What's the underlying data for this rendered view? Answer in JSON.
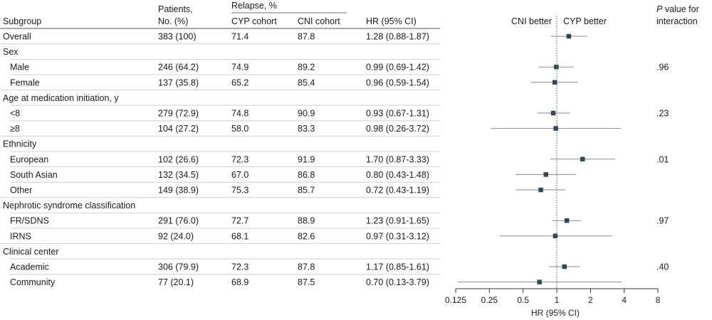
{
  "header": {
    "subgroup": "Subgroup",
    "patients_line1": "Patients,",
    "patients_line2": "No. (%)",
    "relapse": "Relapse, %",
    "cyp": "CYP cohort",
    "cni": "CNI cohort",
    "hr": "HR (95% CI)",
    "cni_better": "CNI better",
    "cyp_better": "CYP better",
    "pvalue_p": "P",
    "pvalue_rest": " value for",
    "pvalue_line2": "interaction"
  },
  "chart_data": {
    "type": "forest",
    "xlabel": "HR (95% CI)",
    "xscale": "log2",
    "xlim": [
      0.125,
      8
    ],
    "xticks": [
      "0.125",
      "0.25",
      "0.5",
      "1",
      "2",
      "4",
      "8"
    ],
    "reference_line": 1,
    "marker_color": "#2e4a5a",
    "rows": [
      {
        "type": "data",
        "label": "Overall",
        "patients": "383 (100)",
        "cyp": "71.4",
        "cni": "87.8",
        "hr_text": "1.28 (0.88-1.87)",
        "hr": 1.28,
        "lo": 0.88,
        "hi": 1.87
      },
      {
        "type": "group",
        "label": "Sex"
      },
      {
        "type": "data",
        "label": "Male",
        "patients": "246 (64.2)",
        "cyp": "74.9",
        "cni": "89.2",
        "hr_text": "0.99 (0.69-1.42)",
        "hr": 0.99,
        "lo": 0.69,
        "hi": 1.42
      },
      {
        "type": "data",
        "label": "Female",
        "patients": "137 (35.8)",
        "cyp": "65.2",
        "cni": "85.4",
        "hr_text": "0.96 (0.59-1.54)",
        "hr": 0.96,
        "lo": 0.59,
        "hi": 1.54
      },
      {
        "type": "group",
        "label": "Age at medication initiation, y"
      },
      {
        "type": "data",
        "label": "<8",
        "patients": "279 (72.9)",
        "cyp": "74.8",
        "cni": "90.9",
        "hr_text": "0.93 (0.67-1.31)",
        "hr": 0.93,
        "lo": 0.67,
        "hi": 1.31
      },
      {
        "type": "data",
        "label": "≥8",
        "patients": "104 (27.2)",
        "cyp": "58.0",
        "cni": "83.3",
        "hr_text": "0.98 (0.26-3.72)",
        "hr": 0.98,
        "lo": 0.26,
        "hi": 3.72
      },
      {
        "type": "group",
        "label": "Ethnicity"
      },
      {
        "type": "data",
        "label": "European",
        "patients": "102 (26.6)",
        "cyp": "72.3",
        "cni": "91.9",
        "hr_text": "1.70 (0.87-3.33)",
        "hr": 1.7,
        "lo": 0.87,
        "hi": 3.33
      },
      {
        "type": "data",
        "label": "South Asian",
        "patients": "132 (34.5)",
        "cyp": "67.0",
        "cni": "86.8",
        "hr_text": "0.80 (0.43-1.48)",
        "hr": 0.8,
        "lo": 0.43,
        "hi": 1.48
      },
      {
        "type": "data",
        "label": "Other",
        "patients": "149 (38.9)",
        "cyp": "75.3",
        "cni": "85.7",
        "hr_text": "0.72 (0.43-1.19)",
        "hr": 0.72,
        "lo": 0.43,
        "hi": 1.19
      },
      {
        "type": "group",
        "label": "Nephrotic syndrome classification"
      },
      {
        "type": "data",
        "label": "FR/SDNS",
        "patients": "291 (76.0)",
        "cyp": "72.7",
        "cni": "88.9",
        "hr_text": "1.23 (0.91-1.65)",
        "hr": 1.23,
        "lo": 0.91,
        "hi": 1.65
      },
      {
        "type": "data",
        "label": "IRNS",
        "patients": "92 (24.0)",
        "cyp": "68.1",
        "cni": "82.6",
        "hr_text": "0.97 (0.31-3.12)",
        "hr": 0.97,
        "lo": 0.31,
        "hi": 3.12
      },
      {
        "type": "group",
        "label": "Clinical center"
      },
      {
        "type": "data",
        "label": "Academic",
        "patients": "306 (79.9)",
        "cyp": "72.3",
        "cni": "87.8",
        "hr_text": "1.17 (0.85-1.61)",
        "hr": 1.17,
        "lo": 0.85,
        "hi": 1.61
      },
      {
        "type": "data",
        "label": "Community",
        "patients": "77 (20.1)",
        "cyp": "68.9",
        "cni": "87.5",
        "hr_text": "0.70 (0.13-3.79)",
        "hr": 0.7,
        "lo": 0.13,
        "hi": 3.79
      }
    ],
    "interaction_pvalues": [
      ".96",
      ".23",
      ".01",
      ".97",
      ".40"
    ]
  }
}
